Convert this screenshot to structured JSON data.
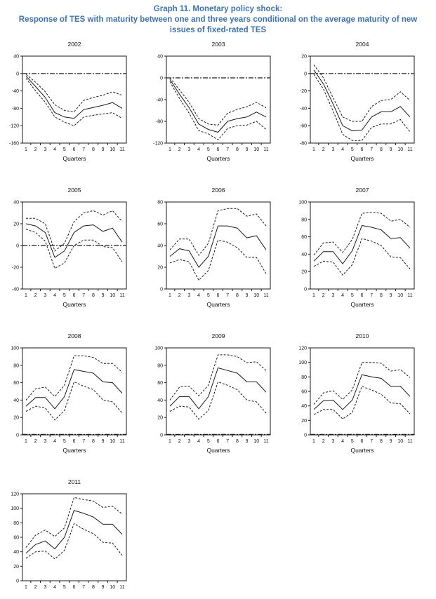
{
  "page": {
    "title_line1": "Graph 11. Monetary policy shock:",
    "title_line2": "Response of TES with maturity between one and three years conditional on the average maturity of new issues of fixed-rated TES",
    "accent_color": "#3A74B5",
    "line_color": "#1a1a1a"
  },
  "chart_data": [
    {
      "type": "line",
      "title": "2002",
      "xlabel": "Quarters",
      "x": [
        1,
        2,
        3,
        4,
        5,
        6,
        7,
        8,
        9,
        10,
        11
      ],
      "ylim": [
        -160,
        40
      ],
      "yticks": [
        40,
        0,
        -40,
        -80,
        -120,
        -160
      ],
      "zero_line": true,
      "legend": "none",
      "series": [
        {
          "name": "upper band",
          "style": "dashed",
          "values": [
            -2,
            -20,
            -42,
            -72,
            -85,
            -88,
            -62,
            -55,
            -50,
            -42,
            -50
          ]
        },
        {
          "name": "response",
          "style": "solid",
          "values": [
            -6,
            -30,
            -55,
            -90,
            -100,
            -103,
            -83,
            -78,
            -73,
            -67,
            -80
          ]
        },
        {
          "name": "lower band",
          "style": "dashed",
          "values": [
            -11,
            -40,
            -66,
            -100,
            -112,
            -120,
            -100,
            -96,
            -93,
            -90,
            -103
          ]
        }
      ]
    },
    {
      "type": "line",
      "title": "2003",
      "xlabel": "Quarters",
      "x": [
        1,
        2,
        3,
        4,
        5,
        6,
        7,
        8,
        9,
        10,
        11
      ],
      "ylim": [
        -120,
        40
      ],
      "yticks": [
        40,
        0,
        -40,
        -80,
        -120
      ],
      "zero_line": true,
      "legend": "none",
      "series": [
        {
          "name": "upper band",
          "style": "dashed",
          "values": [
            0,
            -22,
            -45,
            -75,
            -85,
            -87,
            -65,
            -58,
            -53,
            -45,
            -55
          ]
        },
        {
          "name": "response",
          "style": "solid",
          "values": [
            -3,
            -30,
            -55,
            -85,
            -95,
            -100,
            -80,
            -75,
            -72,
            -63,
            -72
          ]
        },
        {
          "name": "lower band",
          "style": "dashed",
          "values": [
            -7,
            -38,
            -65,
            -97,
            -103,
            -114,
            -93,
            -88,
            -87,
            -80,
            -95
          ]
        }
      ]
    },
    {
      "type": "line",
      "title": "2004",
      "xlabel": "Quarters",
      "x": [
        1,
        2,
        3,
        4,
        5,
        6,
        7,
        8,
        9,
        10,
        11
      ],
      "ylim": [
        -80,
        20
      ],
      "yticks": [
        20,
        0,
        -20,
        -40,
        -60,
        -80
      ],
      "zero_line": true,
      "legend": "none",
      "series": [
        {
          "name": "upper band",
          "style": "dashed",
          "values": [
            10,
            -5,
            -28,
            -50,
            -55,
            -55,
            -38,
            -31,
            -30,
            -21,
            -31
          ]
        },
        {
          "name": "response",
          "style": "solid",
          "values": [
            4,
            -12,
            -35,
            -60,
            -66,
            -65,
            -50,
            -44,
            -44,
            -38,
            -50
          ]
        },
        {
          "name": "lower band",
          "style": "dashed",
          "values": [
            -1,
            -18,
            -43,
            -70,
            -77,
            -77,
            -62,
            -58,
            -58,
            -53,
            -67
          ]
        }
      ]
    },
    {
      "type": "line",
      "title": "2005",
      "xlabel": "Quarters",
      "x": [
        1,
        2,
        3,
        4,
        5,
        6,
        7,
        8,
        9,
        10,
        11
      ],
      "ylim": [
        -40,
        40
      ],
      "yticks": [
        40,
        20,
        0,
        -20,
        -40
      ],
      "zero_line": true,
      "legend": "none",
      "series": [
        {
          "name": "upper band",
          "style": "dashed",
          "values": [
            25,
            25,
            20,
            -5,
            2,
            22,
            30,
            32,
            28,
            32,
            22
          ]
        },
        {
          "name": "response",
          "style": "solid",
          "values": [
            20,
            18,
            12,
            -11,
            -5,
            12,
            18,
            19,
            13,
            16,
            3
          ]
        },
        {
          "name": "lower band",
          "style": "dashed",
          "values": [
            15,
            12,
            4,
            -21,
            -16,
            0,
            5,
            5,
            -1,
            -2,
            -15
          ]
        }
      ]
    },
    {
      "type": "line",
      "title": "2006",
      "xlabel": "Quarters",
      "x": [
        1,
        2,
        3,
        4,
        5,
        6,
        7,
        8,
        9,
        10,
        11
      ],
      "ylim": [
        0,
        80
      ],
      "yticks": [
        80,
        60,
        40,
        20,
        0
      ],
      "zero_line": false,
      "legend": "none",
      "series": [
        {
          "name": "upper band",
          "style": "dashed",
          "values": [
            36,
            46,
            46,
            31,
            42,
            72,
            74,
            74,
            67,
            69,
            58
          ]
        },
        {
          "name": "response",
          "style": "solid",
          "values": [
            30,
            37,
            35,
            20,
            30,
            58,
            58,
            56,
            47,
            49,
            36
          ]
        },
        {
          "name": "lower band",
          "style": "dashed",
          "values": [
            24,
            27,
            25,
            8,
            17,
            45,
            43,
            38,
            29,
            29,
            14
          ]
        }
      ]
    },
    {
      "type": "line",
      "title": "2007",
      "xlabel": "Quarters",
      "x": [
        1,
        2,
        3,
        4,
        5,
        6,
        7,
        8,
        9,
        10,
        11
      ],
      "ylim": [
        0,
        100
      ],
      "yticks": [
        100,
        80,
        60,
        40,
        20,
        0
      ],
      "zero_line": false,
      "legend": "none",
      "series": [
        {
          "name": "upper band",
          "style": "dashed",
          "values": [
            39,
            53,
            54,
            42,
            57,
            87,
            88,
            87,
            78,
            80,
            71
          ]
        },
        {
          "name": "response",
          "style": "solid",
          "values": [
            32,
            43,
            43,
            29,
            44,
            73,
            71,
            68,
            58,
            59,
            47
          ]
        },
        {
          "name": "lower band",
          "style": "dashed",
          "values": [
            26,
            32,
            31,
            16,
            28,
            58,
            55,
            50,
            37,
            36,
            23
          ]
        }
      ]
    },
    {
      "type": "line",
      "title": "2008",
      "xlabel": "Quarters",
      "x": [
        1,
        2,
        3,
        4,
        5,
        6,
        7,
        8,
        9,
        10,
        11
      ],
      "ylim": [
        0,
        100
      ],
      "yticks": [
        100,
        80,
        60,
        40,
        20,
        0
      ],
      "zero_line": true,
      "legend": "none",
      "series": [
        {
          "name": "upper band",
          "style": "dashed",
          "values": [
            40,
            53,
            55,
            44,
            57,
            91,
            91,
            89,
            82,
            82,
            72
          ]
        },
        {
          "name": "response",
          "style": "solid",
          "values": [
            33,
            43,
            43,
            30,
            44,
            75,
            73,
            71,
            61,
            60,
            48
          ]
        },
        {
          "name": "lower band",
          "style": "dashed",
          "values": [
            27,
            33,
            31,
            17,
            28,
            61,
            56,
            52,
            40,
            38,
            25
          ]
        }
      ]
    },
    {
      "type": "line",
      "title": "2009",
      "xlabel": "Quarters",
      "x": [
        1,
        2,
        3,
        4,
        5,
        6,
        7,
        8,
        9,
        10,
        11
      ],
      "ylim": [
        0,
        100
      ],
      "yticks": [
        100,
        80,
        60,
        40,
        20,
        0
      ],
      "zero_line": true,
      "legend": "none",
      "series": [
        {
          "name": "upper band",
          "style": "dashed",
          "values": [
            40,
            55,
            56,
            45,
            57,
            92,
            92,
            90,
            83,
            84,
            74
          ]
        },
        {
          "name": "response",
          "style": "solid",
          "values": [
            33,
            44,
            44,
            30,
            44,
            77,
            74,
            71,
            61,
            61,
            49
          ]
        },
        {
          "name": "lower band",
          "style": "dashed",
          "values": [
            27,
            33,
            32,
            18,
            28,
            61,
            57,
            52,
            40,
            38,
            25
          ]
        }
      ]
    },
    {
      "type": "line",
      "title": "2010",
      "xlabel": "Quarters",
      "x": [
        1,
        2,
        3,
        4,
        5,
        6,
        7,
        8,
        9,
        10,
        11
      ],
      "ylim": [
        0,
        120
      ],
      "yticks": [
        120,
        100,
        80,
        60,
        40,
        20,
        0
      ],
      "zero_line": true,
      "legend": "none",
      "series": [
        {
          "name": "upper band",
          "style": "dashed",
          "values": [
            42,
            58,
            61,
            49,
            62,
            100,
            100,
            99,
            88,
            90,
            79
          ]
        },
        {
          "name": "response",
          "style": "solid",
          "values": [
            35,
            47,
            48,
            35,
            48,
            83,
            80,
            78,
            67,
            67,
            53
          ]
        },
        {
          "name": "lower band",
          "style": "dashed",
          "values": [
            28,
            35,
            35,
            22,
            31,
            67,
            62,
            56,
            44,
            43,
            29
          ]
        }
      ]
    },
    {
      "type": "line",
      "title": "2011",
      "xlabel": "",
      "x": [
        1,
        2,
        3,
        4,
        5,
        6,
        7,
        8,
        9,
        10,
        11
      ],
      "ylim": [
        0,
        120
      ],
      "yticks": [
        120,
        100,
        80,
        60,
        40,
        20,
        0
      ],
      "zero_line": false,
      "legend": "none",
      "series": [
        {
          "name": "upper band",
          "style": "dashed",
          "values": [
            46,
            63,
            70,
            61,
            73,
            115,
            112,
            110,
            101,
            103,
            92
          ]
        },
        {
          "name": "response",
          "style": "solid",
          "values": [
            38,
            50,
            55,
            44,
            60,
            97,
            93,
            88,
            78,
            78,
            64
          ]
        },
        {
          "name": "lower band",
          "style": "dashed",
          "values": [
            31,
            40,
            41,
            30,
            42,
            79,
            71,
            65,
            53,
            52,
            35
          ]
        }
      ]
    }
  ]
}
